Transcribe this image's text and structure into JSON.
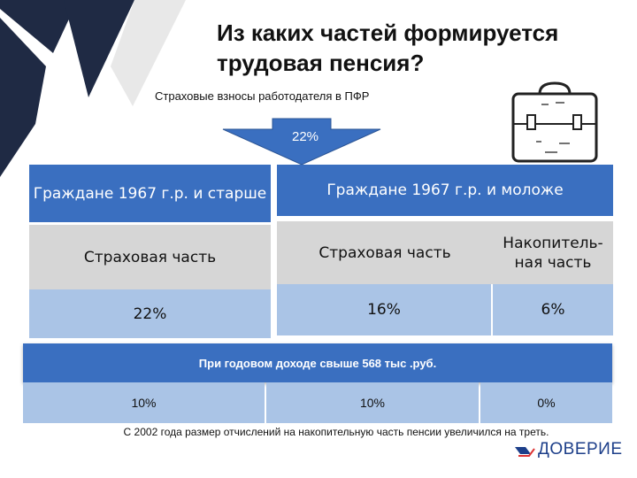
{
  "title": "Из каких частей формируется трудовая пенсия?",
  "subtitle": "Страховые взносы работодателя в ПФР",
  "arrow_label": "22%",
  "left_header": "Граждане 1967 г.р. и старше",
  "right_header": "Граждане 1967 г.р. и моложе",
  "left_insurance": "Страховая часть",
  "right_insurance": "Страховая часть",
  "right_funded": "Накопитель-ная часть",
  "left_pct": "22%",
  "right_insurance_pct": "16%",
  "right_funded_pct": "6%",
  "band_text": "При годовом доходе свыше 568 тыс .руб.",
  "band_row": [
    "10%",
    "10%",
    "0%"
  ],
  "footer": "С 2002 года размер отчислений на накопительную часть пенсии увеличился на треть.",
  "brand": "ДОВЕРИЕ",
  "colors": {
    "header_blue": "#3a6fc0",
    "light_blue": "#aac4e6",
    "gray": "#d6d6d6",
    "dark_navy": "#1f2a44"
  }
}
